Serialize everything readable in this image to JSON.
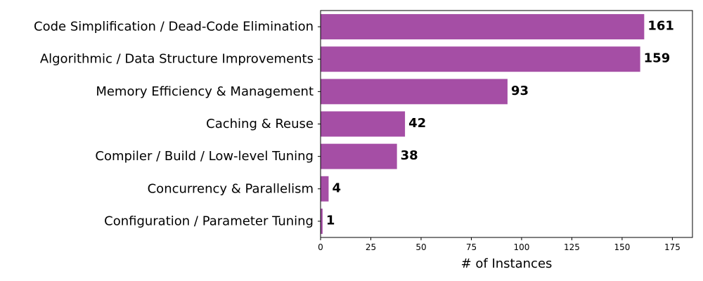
{
  "chart_data": {
    "type": "bar",
    "orientation": "horizontal",
    "categories": [
      "Code Simplification / Dead-Code Elimination",
      "Algorithmic / Data Structure Improvements",
      "Memory Efficiency & Management",
      "Caching & Reuse",
      "Compiler / Build / Low-level Tuning",
      "Concurrency & Parallelism",
      "Configuration / Parameter Tuning"
    ],
    "values": [
      161,
      159,
      93,
      42,
      38,
      4,
      1
    ],
    "value_labels": [
      "161",
      "159",
      "93",
      "42",
      "38",
      "4",
      "1"
    ],
    "xlabel": "# of Instances",
    "ylabel": "",
    "title": "",
    "xlim": [
      0,
      185
    ],
    "xticks": [
      0,
      25,
      50,
      75,
      100,
      125,
      150,
      175
    ],
    "xtick_labels": [
      "0",
      "25",
      "50",
      "75",
      "100",
      "125",
      "150",
      "175"
    ],
    "grid": false,
    "bar_color": "#a54ea5"
  }
}
